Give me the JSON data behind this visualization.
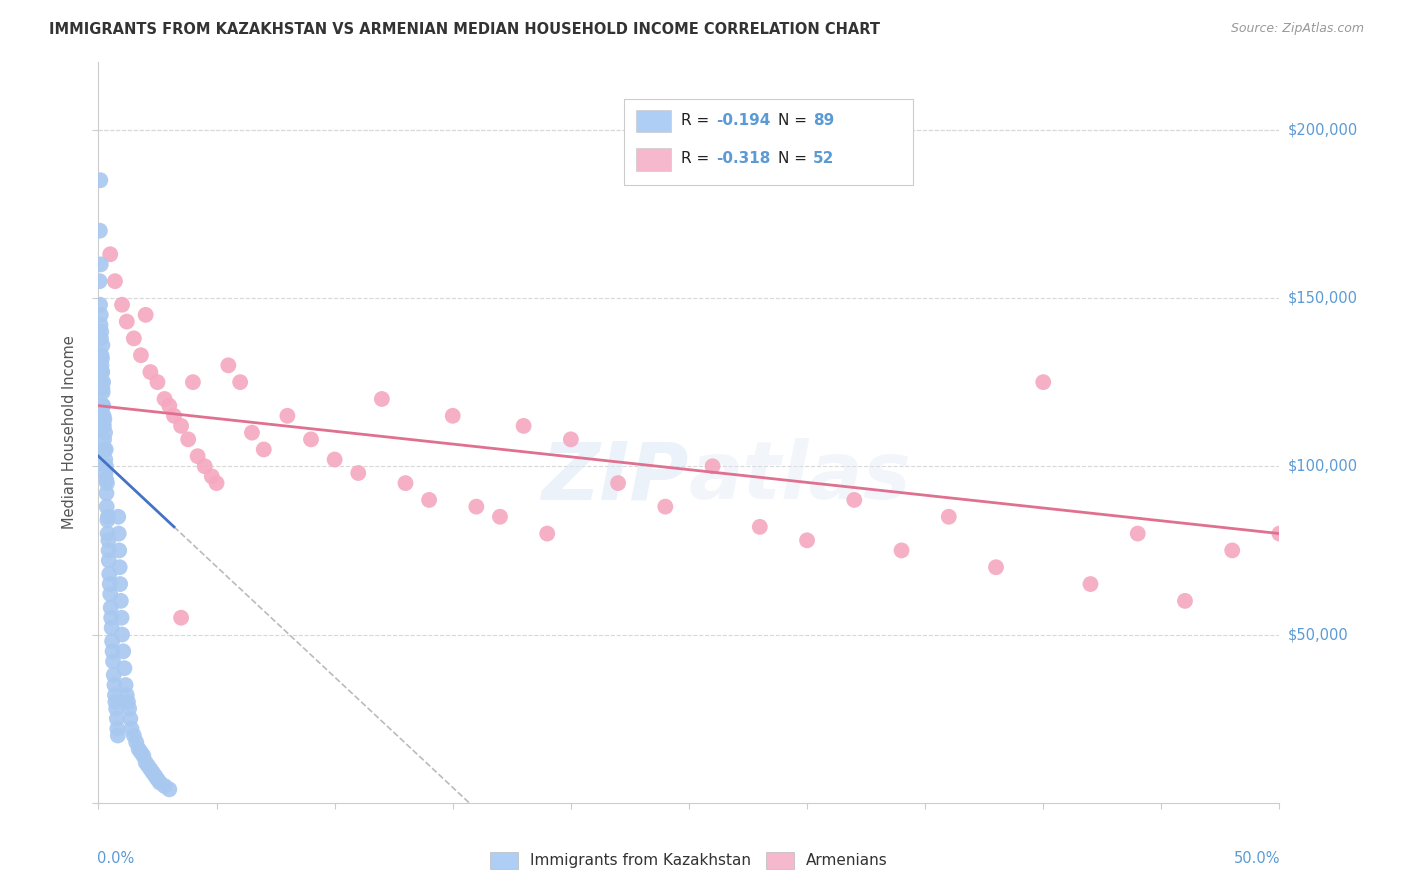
{
  "title": "IMMIGRANTS FROM KAZAKHSTAN VS ARMENIAN MEDIAN HOUSEHOLD INCOME CORRELATION CHART",
  "source": "Source: ZipAtlas.com",
  "ylabel": "Median Household Income",
  "xlim": [
    0.0,
    0.5
  ],
  "ylim": [
    0,
    220000
  ],
  "watermark": "ZIPatlas",
  "series1_color": "#a8c8f0",
  "series1_line_color": "#4472c4",
  "series2_color": "#f5a8c0",
  "series2_line_color": "#e07090",
  "series2_line_color_ext": "#e87090",
  "background_color": "#ffffff",
  "grid_color": "#d8d8d8",
  "axis_label_color": "#5b9bd5",
  "legend_box1_color": "#aecef5",
  "legend_box2_color": "#f5b8cc",
  "title_fontsize": 10.5,
  "scatter_size": 130,
  "kaz_x": [
    0.0006,
    0.0008,
    0.001,
    0.001,
    0.0012,
    0.0013,
    0.0014,
    0.0015,
    0.0016,
    0.0017,
    0.0018,
    0.002,
    0.002,
    0.0022,
    0.0023,
    0.0024,
    0.0025,
    0.0026,
    0.0028,
    0.0029,
    0.003,
    0.0031,
    0.0032,
    0.0033,
    0.0034,
    0.0035,
    0.0036,
    0.0038,
    0.0039,
    0.004,
    0.0042,
    0.0043,
    0.0044,
    0.0046,
    0.0048,
    0.005,
    0.0052,
    0.0054,
    0.0056,
    0.0058,
    0.006,
    0.0062,
    0.0065,
    0.0068,
    0.007,
    0.0072,
    0.0075,
    0.0078,
    0.008,
    0.0082,
    0.0084,
    0.0086,
    0.0088,
    0.009,
    0.0092,
    0.0095,
    0.0098,
    0.01,
    0.0105,
    0.011,
    0.0115,
    0.012,
    0.0125,
    0.013,
    0.0135,
    0.014,
    0.015,
    0.016,
    0.017,
    0.018,
    0.019,
    0.02,
    0.021,
    0.022,
    0.023,
    0.024,
    0.025,
    0.026,
    0.028,
    0.03,
    0.0005,
    0.0007,
    0.0009,
    0.0011,
    0.0013,
    0.0015,
    0.0017,
    0.0019,
    0.0021
  ],
  "kaz_y": [
    170000,
    185000,
    160000,
    145000,
    140000,
    130000,
    125000,
    132000,
    128000,
    136000,
    122000,
    118000,
    125000,
    115000,
    112000,
    108000,
    114000,
    105000,
    110000,
    102000,
    98000,
    105000,
    100000,
    96000,
    92000,
    88000,
    95000,
    84000,
    80000,
    85000,
    78000,
    75000,
    72000,
    68000,
    65000,
    62000,
    58000,
    55000,
    52000,
    48000,
    45000,
    42000,
    38000,
    35000,
    32000,
    30000,
    28000,
    25000,
    22000,
    20000,
    85000,
    80000,
    75000,
    70000,
    65000,
    60000,
    55000,
    50000,
    45000,
    40000,
    35000,
    32000,
    30000,
    28000,
    25000,
    22000,
    20000,
    18000,
    16000,
    15000,
    14000,
    12000,
    11000,
    10000,
    9000,
    8000,
    7000,
    6000,
    5000,
    4000,
    155000,
    148000,
    142000,
    138000,
    133000,
    128000,
    123000,
    118000,
    113000
  ],
  "arm_x": [
    0.005,
    0.007,
    0.01,
    0.012,
    0.015,
    0.018,
    0.02,
    0.022,
    0.025,
    0.028,
    0.03,
    0.032,
    0.035,
    0.038,
    0.04,
    0.042,
    0.045,
    0.048,
    0.05,
    0.055,
    0.06,
    0.065,
    0.07,
    0.08,
    0.09,
    0.1,
    0.11,
    0.12,
    0.13,
    0.14,
    0.15,
    0.16,
    0.17,
    0.18,
    0.19,
    0.2,
    0.22,
    0.24,
    0.26,
    0.28,
    0.3,
    0.32,
    0.34,
    0.36,
    0.38,
    0.4,
    0.42,
    0.44,
    0.46,
    0.48,
    0.5,
    0.035
  ],
  "arm_y": [
    163000,
    155000,
    148000,
    143000,
    138000,
    133000,
    145000,
    128000,
    125000,
    120000,
    118000,
    115000,
    112000,
    108000,
    125000,
    103000,
    100000,
    97000,
    95000,
    130000,
    125000,
    110000,
    105000,
    115000,
    108000,
    102000,
    98000,
    120000,
    95000,
    90000,
    115000,
    88000,
    85000,
    112000,
    80000,
    108000,
    95000,
    88000,
    100000,
    82000,
    78000,
    90000,
    75000,
    85000,
    70000,
    125000,
    65000,
    80000,
    60000,
    75000,
    80000,
    55000
  ]
}
